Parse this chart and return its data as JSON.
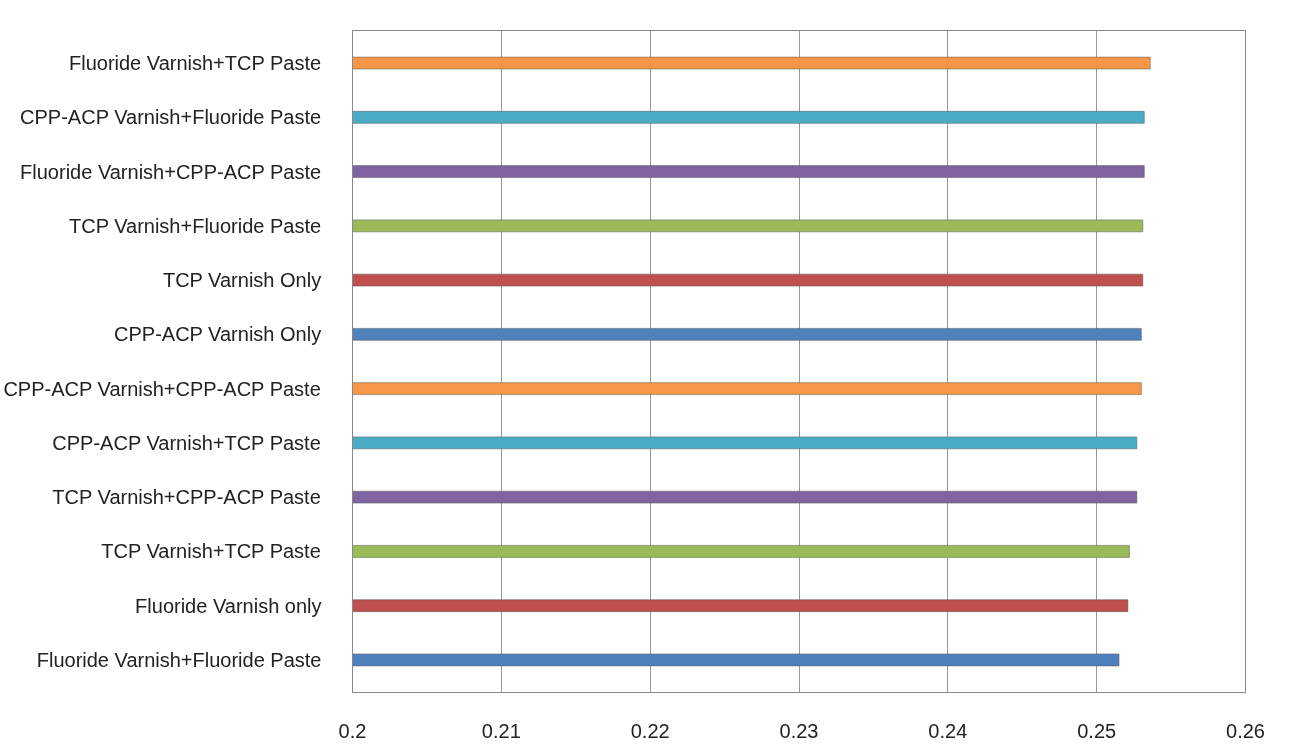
{
  "chart_data": {
    "type": "bar",
    "orientation": "horizontal",
    "categories": [
      "Fluoride Varnish+TCP Paste",
      "CPP-ACP Varnish+Fluoride Paste",
      "Fluoride Varnish+CPP-ACP Paste",
      "TCP Varnish+Fluoride Paste",
      "TCP Varnish Only",
      "CPP-ACP Varnish Only",
      "CPP-ACP Varnish+CPP-ACP Paste",
      "CPP-ACP Varnish+TCP Paste",
      "TCP Varnish+CPP-ACP Paste",
      "TCP Varnish+TCP Paste",
      "Fluoride Varnish only",
      "Fluoride Varnish+Fluoride Paste"
    ],
    "values": [
      0.2536,
      0.2532,
      0.2532,
      0.2531,
      0.2531,
      0.253,
      0.253,
      0.2527,
      0.2527,
      0.2522,
      0.2521,
      0.2515
    ],
    "colors": [
      "#f79646",
      "#4bacc6",
      "#8064a2",
      "#9bbb59",
      "#c0504d",
      "#4f81bd",
      "#f79646",
      "#4bacc6",
      "#8064a2",
      "#9bbb59",
      "#c0504d",
      "#4f81bd"
    ],
    "xlim": [
      0.2,
      0.26
    ],
    "xticks": [
      0.2,
      0.21,
      0.22,
      0.23,
      0.24,
      0.25,
      0.26
    ],
    "grid": "x"
  }
}
